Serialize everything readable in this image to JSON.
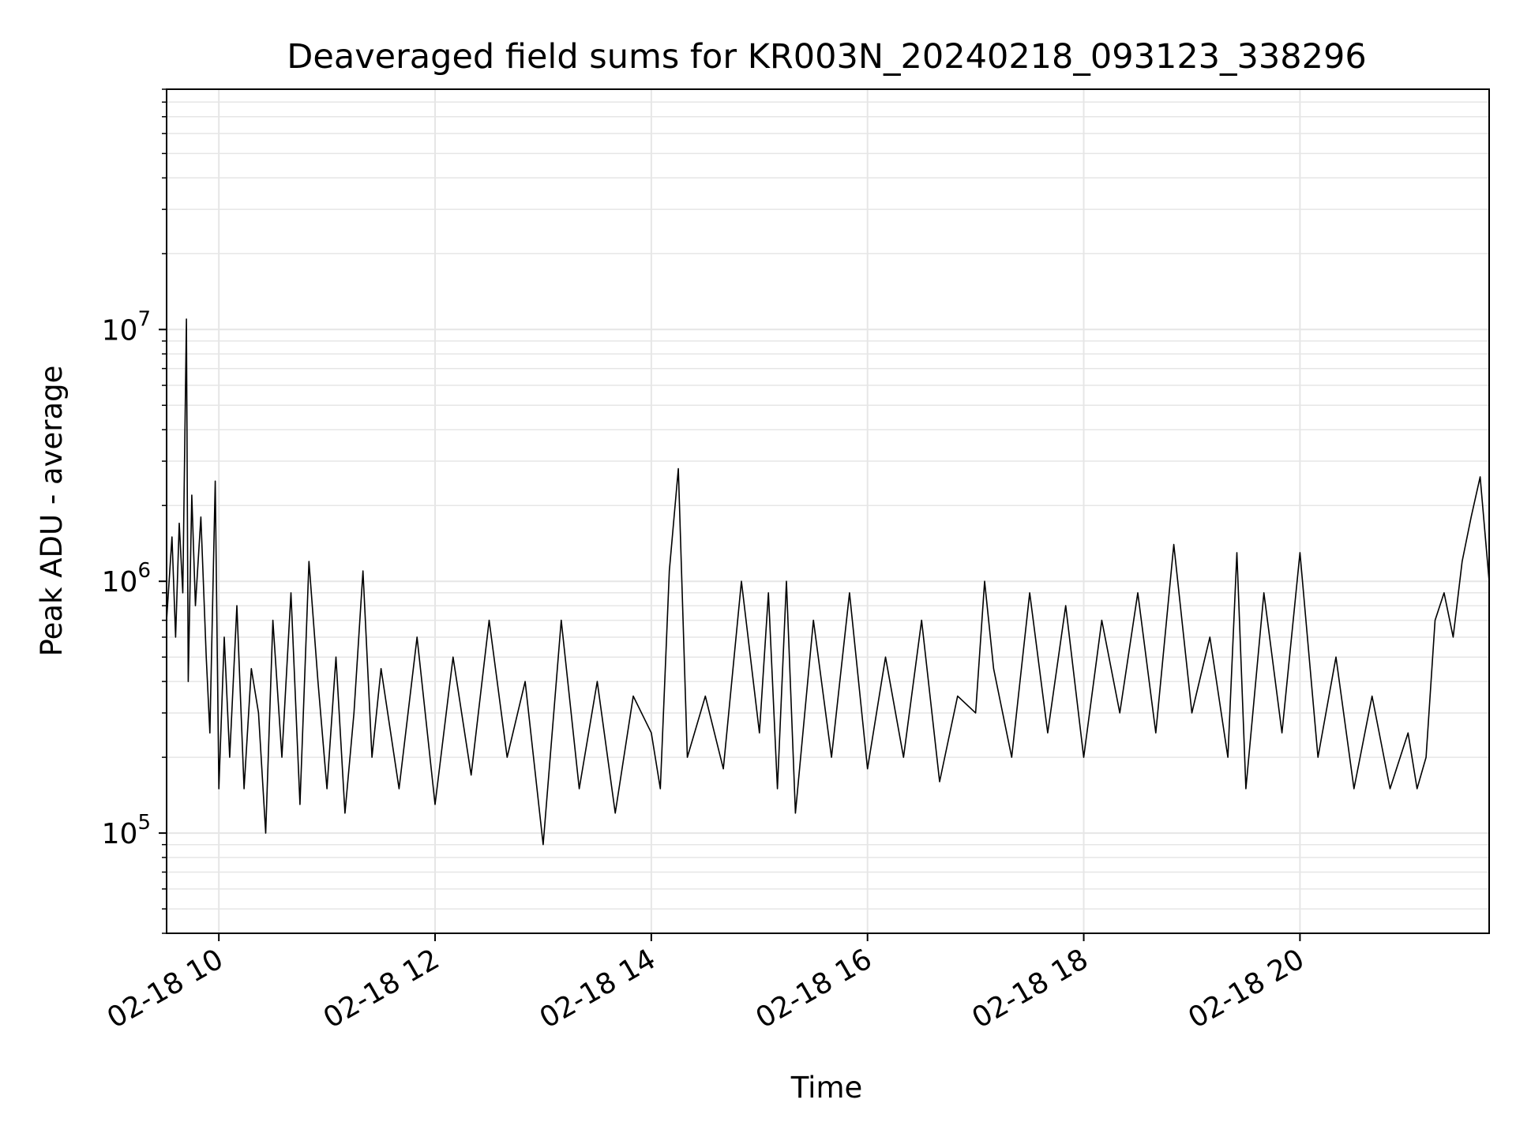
{
  "chart_data": {
    "type": "line",
    "title": "Deaveraged field sums for KR003N_20240218_093123_338296",
    "xlabel": "Time",
    "ylabel": "Peak ADU - average",
    "yscale": "log",
    "ylim": [
      40000,
      90000000
    ],
    "xlim": [
      "02-18 09:31",
      "02-18 21:45"
    ],
    "grid": true,
    "legend": "none",
    "line_color": "#000000",
    "x_ticks": [
      "02-18 10",
      "02-18 12",
      "02-18 14",
      "02-18 16",
      "02-18 18",
      "02-18 20"
    ],
    "y_ticks": [
      {
        "base": "10",
        "exp": "5",
        "value": 100000
      },
      {
        "base": "10",
        "exp": "6",
        "value": 1000000
      },
      {
        "base": "10",
        "exp": "7",
        "value": 10000000
      }
    ],
    "series": [
      {
        "x": [
          "02-18 09:31",
          "02-18 09:34",
          "02-18 09:36",
          "02-18 09:38",
          "02-18 09:40",
          "02-18 09:42",
          "02-18 09:43",
          "02-18 09:45",
          "02-18 09:47",
          "02-18 09:50",
          "02-18 09:53",
          "02-18 09:55",
          "02-18 09:58",
          "02-18 10:00",
          "02-18 10:03",
          "02-18 10:06",
          "02-18 10:10",
          "02-18 10:14",
          "02-18 10:18",
          "02-18 10:22",
          "02-18 10:26",
          "02-18 10:30",
          "02-18 10:35",
          "02-18 10:40",
          "02-18 10:45",
          "02-18 10:50",
          "02-18 10:55",
          "02-18 11:00",
          "02-18 11:05",
          "02-18 11:10",
          "02-18 11:15",
          "02-18 11:20",
          "02-18 11:25",
          "02-18 11:30",
          "02-18 11:40",
          "02-18 11:50",
          "02-18 12:00",
          "02-18 12:10",
          "02-18 12:20",
          "02-18 12:30",
          "02-18 12:40",
          "02-18 12:50",
          "02-18 13:00",
          "02-18 13:10",
          "02-18 13:20",
          "02-18 13:30",
          "02-18 13:40",
          "02-18 13:50",
          "02-18 14:00",
          "02-18 14:05",
          "02-18 14:10",
          "02-18 14:15",
          "02-18 14:20",
          "02-18 14:30",
          "02-18 14:40",
          "02-18 14:50",
          "02-18 15:00",
          "02-18 15:05",
          "02-18 15:10",
          "02-18 15:15",
          "02-18 15:20",
          "02-18 15:30",
          "02-18 15:40",
          "02-18 15:50",
          "02-18 16:00",
          "02-18 16:10",
          "02-18 16:20",
          "02-18 16:30",
          "02-18 16:40",
          "02-18 16:50",
          "02-18 17:00",
          "02-18 17:05",
          "02-18 17:10",
          "02-18 17:20",
          "02-18 17:30",
          "02-18 17:40",
          "02-18 17:50",
          "02-18 18:00",
          "02-18 18:10",
          "02-18 18:20",
          "02-18 18:30",
          "02-18 18:40",
          "02-18 18:50",
          "02-18 19:00",
          "02-18 19:10",
          "02-18 19:20",
          "02-18 19:25",
          "02-18 19:30",
          "02-18 19:40",
          "02-18 19:50",
          "02-18 20:00",
          "02-18 20:10",
          "02-18 20:20",
          "02-18 20:30",
          "02-18 20:40",
          "02-18 20:50",
          "02-18 21:00",
          "02-18 21:05",
          "02-18 21:10",
          "02-18 21:15",
          "02-18 21:20",
          "02-18 21:25",
          "02-18 21:30",
          "02-18 21:35",
          "02-18 21:40",
          "02-18 21:45"
        ],
        "y": [
          700000,
          1500000,
          600000,
          1700000,
          900000,
          11000000,
          400000,
          2200000,
          800000,
          1800000,
          500000,
          250000,
          2500000,
          150000,
          600000,
          200000,
          800000,
          150000,
          450000,
          300000,
          100000,
          700000,
          200000,
          900000,
          130000,
          1200000,
          400000,
          150000,
          500000,
          120000,
          300000,
          1100000,
          200000,
          450000,
          150000,
          600000,
          130000,
          500000,
          170000,
          700000,
          200000,
          400000,
          90000,
          700000,
          150000,
          400000,
          120000,
          350000,
          250000,
          150000,
          1100000,
          2800000,
          200000,
          350000,
          180000,
          1000000,
          250000,
          900000,
          150000,
          1000000,
          120000,
          700000,
          200000,
          900000,
          180000,
          500000,
          200000,
          700000,
          160000,
          350000,
          300000,
          1000000,
          450000,
          200000,
          900000,
          250000,
          800000,
          200000,
          700000,
          300000,
          900000,
          250000,
          1400000,
          300000,
          600000,
          200000,
          1300000,
          150000,
          900000,
          250000,
          1300000,
          200000,
          500000,
          150000,
          350000,
          150000,
          250000,
          150000,
          200000,
          700000,
          900000,
          600000,
          1200000,
          1800000,
          2600000,
          1000000
        ]
      }
    ]
  }
}
